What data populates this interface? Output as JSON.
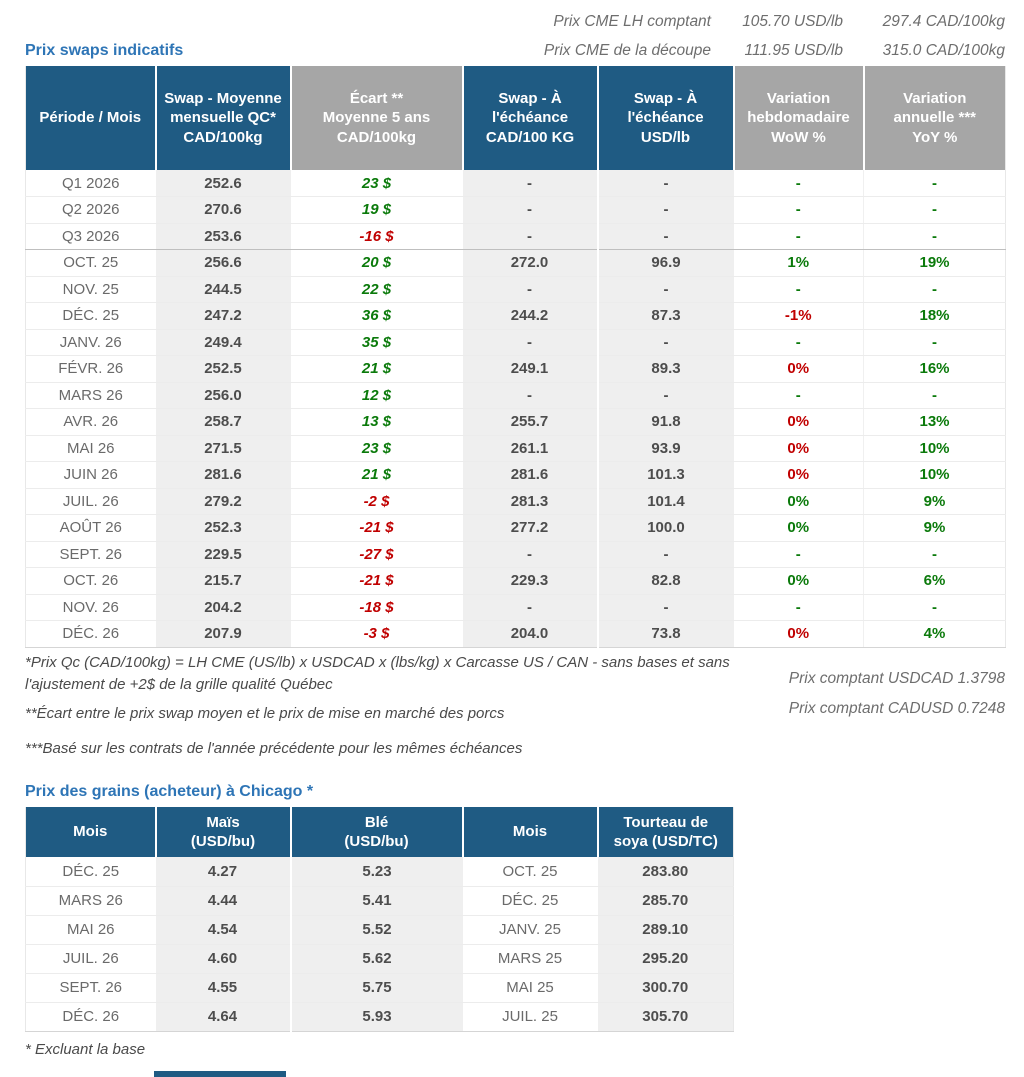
{
  "colors": {
    "header_blue": "#1F5B83",
    "header_gray": "#A6A6A6",
    "title_blue": "#2E75B6",
    "green": "#0B7A0B",
    "red": "#C00000",
    "stripe": "#EFEFEF"
  },
  "top_info": {
    "rows": [
      {
        "label": "Prix CME LH comptant",
        "usd": "105.70 USD/lb",
        "cad": "297.4 CAD/100kg"
      },
      {
        "label": "Prix CME de la découpe",
        "usd": "111.95 USD/lb",
        "cad": "315.0 CAD/100kg"
      }
    ]
  },
  "swaps_table": {
    "title": "Prix swaps indicatifs",
    "headers": [
      {
        "text": "Période / Mois",
        "variant": "blue"
      },
      {
        "text": "Swap - Moyenne\nmensuelle QC*\nCAD/100kg",
        "variant": "blue"
      },
      {
        "text": "Écart **\nMoyenne 5 ans\nCAD/100kg",
        "variant": "gray"
      },
      {
        "text": "Swap - À\nl'échéance\nCAD/100 KG",
        "variant": "blue"
      },
      {
        "text": "Swap - À\nl'échéance\nUSD/lb",
        "variant": "blue"
      },
      {
        "text": "Variation\nhebdomadaire\nWoW %",
        "variant": "gray"
      },
      {
        "text": "Variation\nannuelle ***\nYoY %",
        "variant": "gray"
      }
    ],
    "columns": [
      {
        "key": "period",
        "class": "col-period"
      },
      {
        "key": "avg",
        "class": "col-avg"
      },
      {
        "key": "ecart",
        "class": "col-ecart",
        "color_key": "ecart_c"
      },
      {
        "key": "swap_cad",
        "class": "col-swapcad"
      },
      {
        "key": "swap_usd",
        "class": "col-swapusd"
      },
      {
        "key": "wow",
        "class": "col-wow",
        "color_key": "wow_c"
      },
      {
        "key": "yoy",
        "class": "col-yoy",
        "color_key": "yoy_c"
      }
    ],
    "rows": [
      {
        "period": "Q1 2026",
        "avg": "252.6",
        "ecart": "23 $",
        "ecart_c": "green",
        "swap_cad": "-",
        "swap_usd": "-",
        "wow": "-",
        "wow_c": "green",
        "yoy": "-",
        "yoy_c": "green"
      },
      {
        "period": "Q2 2026",
        "avg": "270.6",
        "ecart": "19 $",
        "ecart_c": "green",
        "swap_cad": "-",
        "swap_usd": "-",
        "wow": "-",
        "wow_c": "green",
        "yoy": "-",
        "yoy_c": "green"
      },
      {
        "period": "Q3 2026",
        "avg": "253.6",
        "ecart": "-16 $",
        "ecart_c": "red",
        "swap_cad": "-",
        "swap_usd": "-",
        "wow": "-",
        "wow_c": "green",
        "yoy": "-",
        "yoy_c": "green",
        "sep": true
      },
      {
        "period": "OCT. 25",
        "avg": "256.6",
        "ecart": "20 $",
        "ecart_c": "green",
        "swap_cad": "272.0",
        "swap_usd": "96.9",
        "wow": "1%",
        "wow_c": "green",
        "yoy": "19%",
        "yoy_c": "green"
      },
      {
        "period": "NOV. 25",
        "avg": "244.5",
        "ecart": "22 $",
        "ecart_c": "green",
        "swap_cad": "-",
        "swap_usd": "-",
        "wow": "-",
        "wow_c": "green",
        "yoy": "-",
        "yoy_c": "green"
      },
      {
        "period": "DÉC. 25",
        "avg": "247.2",
        "ecart": "36 $",
        "ecart_c": "green",
        "swap_cad": "244.2",
        "swap_usd": "87.3",
        "wow": "-1%",
        "wow_c": "red",
        "yoy": "18%",
        "yoy_c": "green"
      },
      {
        "period": "JANV. 26",
        "avg": "249.4",
        "ecart": "35 $",
        "ecart_c": "green",
        "swap_cad": "-",
        "swap_usd": "-",
        "wow": "-",
        "wow_c": "green",
        "yoy": "-",
        "yoy_c": "green"
      },
      {
        "period": "FÉVR. 26",
        "avg": "252.5",
        "ecart": "21 $",
        "ecart_c": "green",
        "swap_cad": "249.1",
        "swap_usd": "89.3",
        "wow": "0%",
        "wow_c": "red",
        "yoy": "16%",
        "yoy_c": "green"
      },
      {
        "period": "MARS 26",
        "avg": "256.0",
        "ecart": "12 $",
        "ecart_c": "green",
        "swap_cad": "-",
        "swap_usd": "-",
        "wow": "-",
        "wow_c": "green",
        "yoy": "-",
        "yoy_c": "green"
      },
      {
        "period": "AVR. 26",
        "avg": "258.7",
        "ecart": "13 $",
        "ecart_c": "green",
        "swap_cad": "255.7",
        "swap_usd": "91.8",
        "wow": "0%",
        "wow_c": "red",
        "yoy": "13%",
        "yoy_c": "green"
      },
      {
        "period": "MAI 26",
        "avg": "271.5",
        "ecart": "23 $",
        "ecart_c": "green",
        "swap_cad": "261.1",
        "swap_usd": "93.9",
        "wow": "0%",
        "wow_c": "red",
        "yoy": "10%",
        "yoy_c": "green"
      },
      {
        "period": "JUIN 26",
        "avg": "281.6",
        "ecart": "21 $",
        "ecart_c": "green",
        "swap_cad": "281.6",
        "swap_usd": "101.3",
        "wow": "0%",
        "wow_c": "red",
        "yoy": "10%",
        "yoy_c": "green"
      },
      {
        "period": "JUIL. 26",
        "avg": "279.2",
        "ecart": "-2 $",
        "ecart_c": "red",
        "swap_cad": "281.3",
        "swap_usd": "101.4",
        "wow": "0%",
        "wow_c": "green",
        "yoy": "9%",
        "yoy_c": "green"
      },
      {
        "period": "AOÛT 26",
        "avg": "252.3",
        "ecart": "-21 $",
        "ecart_c": "red",
        "swap_cad": "277.2",
        "swap_usd": "100.0",
        "wow": "0%",
        "wow_c": "green",
        "yoy": "9%",
        "yoy_c": "green"
      },
      {
        "period": "SEPT. 26",
        "avg": "229.5",
        "ecart": "-27 $",
        "ecart_c": "red",
        "swap_cad": "-",
        "swap_usd": "-",
        "wow": "-",
        "wow_c": "green",
        "yoy": "-",
        "yoy_c": "green"
      },
      {
        "period": "OCT. 26",
        "avg": "215.7",
        "ecart": "-21 $",
        "ecart_c": "red",
        "swap_cad": "229.3",
        "swap_usd": "82.8",
        "wow": "0%",
        "wow_c": "green",
        "yoy": "6%",
        "yoy_c": "green"
      },
      {
        "period": "NOV. 26",
        "avg": "204.2",
        "ecart": "-18 $",
        "ecart_c": "red",
        "swap_cad": "-",
        "swap_usd": "-",
        "wow": "-",
        "wow_c": "green",
        "yoy": "-",
        "yoy_c": "green"
      },
      {
        "period": "DÉC. 26",
        "avg": "207.9",
        "ecart": "-3 $",
        "ecart_c": "red",
        "swap_cad": "204.0",
        "swap_usd": "73.8",
        "wow": "0%",
        "wow_c": "red",
        "yoy": "4%",
        "yoy_c": "green"
      }
    ]
  },
  "footnotes": [
    "*Prix Qc (CAD/100kg) = LH CME (US/lb) x USDCAD x (lbs/kg) x Carcasse US / CAN - sans bases et sans l'ajustement de +2$ de la grille qualité Québec",
    "**Écart entre le prix swap moyen et le prix de mise en marché des porcs",
    "***Basé sur les contrats de l'année précédente pour les mêmes échéances"
  ],
  "fx_notes": {
    "usdcad": "Prix comptant USDCAD 1.3798",
    "cadusd": "Prix comptant CADUSD 0.7248"
  },
  "grains_table": {
    "title": "Prix des grains (acheteur) à Chicago *",
    "headers": [
      {
        "text": "Mois",
        "variant": "blue"
      },
      {
        "text": "Maïs\n(USD/bu)",
        "variant": "blue"
      },
      {
        "text": "Blé\n(USD/bu)",
        "variant": "blue"
      },
      {
        "text": "Mois",
        "variant": "blue"
      },
      {
        "text": "Tourteau de\nsoya (USD/TC)",
        "variant": "blue"
      }
    ],
    "columns": [
      {
        "key": "mois1",
        "class": "col-period"
      },
      {
        "key": "mais",
        "class": "col-mais"
      },
      {
        "key": "ble",
        "class": "col-ble"
      },
      {
        "key": "mois2",
        "class": "col-mois2"
      },
      {
        "key": "tourteau",
        "class": "col-tourteau"
      }
    ],
    "rows": [
      {
        "mois1": "DÉC. 25",
        "mais": "4.27",
        "ble": "5.23",
        "mois2": "OCT. 25",
        "tourteau": "283.80"
      },
      {
        "mois1": "MARS 26",
        "mais": "4.44",
        "ble": "5.41",
        "mois2": "DÉC. 25",
        "tourteau": "285.70"
      },
      {
        "mois1": "MAI 26",
        "mais": "4.54",
        "ble": "5.52",
        "mois2": "JANV. 25",
        "tourteau": "289.10"
      },
      {
        "mois1": "JUIL. 26",
        "mais": "4.60",
        "ble": "5.62",
        "mois2": "MARS 25",
        "tourteau": "295.20"
      },
      {
        "mois1": "SEPT. 26",
        "mais": "4.55",
        "ble": "5.75",
        "mois2": "MAI 25",
        "tourteau": "300.70"
      },
      {
        "mois1": "DÉC. 26",
        "mais": "4.64",
        "ble": "5.93",
        "mois2": "JUIL. 25",
        "tourteau": "305.70"
      }
    ],
    "footnote": "* Excluant la base"
  }
}
